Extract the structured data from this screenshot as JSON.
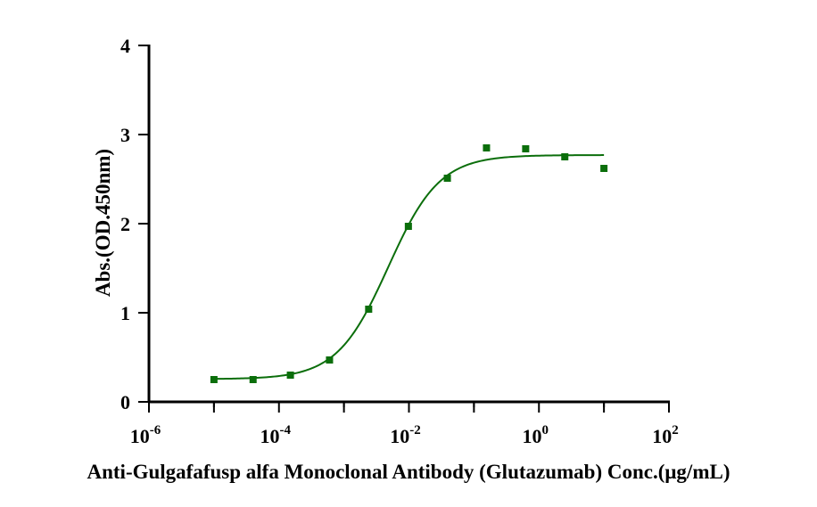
{
  "chart_data": {
    "type": "scatter",
    "xlabel": "Anti-Gulgafafusp alfa Monoclonal Antibody (Glutazumab) Conc.(μg/mL)",
    "ylabel": "Abs.(OD.450nm)",
    "x_scale": "log10",
    "xlim": [
      1e-06,
      100
    ],
    "ylim": [
      0,
      4
    ],
    "x_ticks": [
      {
        "base": "10",
        "exp": "-6",
        "value": 1e-06
      },
      {
        "base": "10",
        "exp": "-4",
        "value": 0.0001
      },
      {
        "base": "10",
        "exp": "-2",
        "value": 0.01
      },
      {
        "base": "10",
        "exp": "0",
        "value": 1
      },
      {
        "base": "10",
        "exp": "2",
        "value": 100
      }
    ],
    "y_ticks": [
      "0",
      "1",
      "2",
      "3",
      "4"
    ],
    "grid": false,
    "series": [
      {
        "x": [
          1e-05,
          4e-05,
          0.00015,
          0.0006,
          0.0024,
          0.0098,
          0.039,
          0.156,
          0.625,
          2.5,
          10
        ],
        "y": [
          0.25,
          0.25,
          0.3,
          0.47,
          1.04,
          1.97,
          2.51,
          2.85,
          2.84,
          2.75,
          2.62
        ],
        "color": "#0b6e0b",
        "marker": "square"
      }
    ],
    "fit": {
      "model": "4PL",
      "bottom": 0.255,
      "top": 2.77,
      "ec50": 0.0048,
      "hill": 1.1,
      "x_range": [
        1e-05,
        10
      ],
      "color": "#0b6e0b"
    }
  }
}
